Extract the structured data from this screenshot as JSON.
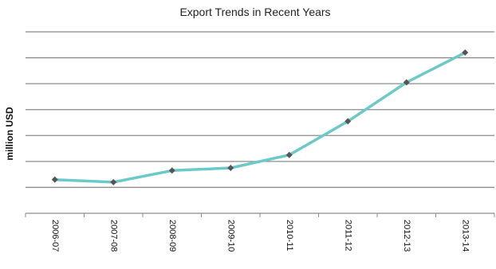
{
  "chart_data": {
    "type": "line",
    "title": "Export Trends in Recent Years",
    "xlabel": "",
    "ylabel": "million USD",
    "categories": [
      "2006-07",
      "2007-08",
      "2008-09",
      "2009-10",
      "2010-11",
      "2011-12",
      "2012-13",
      "2013-14"
    ],
    "series": [
      {
        "values": [
          1.3,
          1.2,
          1.65,
          1.75,
          2.25,
          3.55,
          5.05,
          6.2
        ]
      }
    ],
    "ylim": [
      0,
      7
    ],
    "y_gridlines": [
      0,
      1,
      2,
      3,
      4,
      5,
      6,
      7
    ],
    "y_tick_labels_shown": false,
    "grid": true,
    "legend": "none",
    "colors": {
      "line": "#6CC9C9",
      "marker": "#555555",
      "grid": "#8c8c8c",
      "axis": "#8c8c8c"
    }
  }
}
